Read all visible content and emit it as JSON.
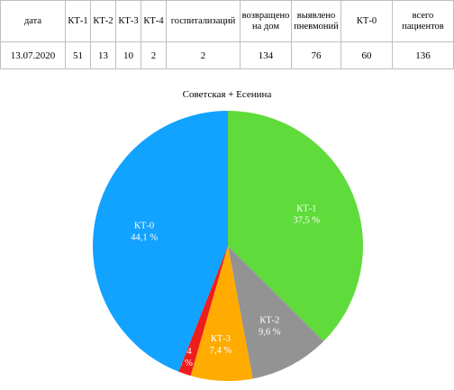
{
  "table": {
    "headers": [
      "дата",
      "КТ-1",
      "КТ-2",
      "КТ-3",
      "КТ-4",
      "госпитализаций",
      "возвращено на дом",
      "выявлено пневмоний",
      "КТ-0",
      "всего пациентов"
    ],
    "rows": [
      [
        "13.07.2020",
        "51",
        "13",
        "10",
        "2",
        "2",
        "134",
        "76",
        "60",
        "136"
      ]
    ]
  },
  "chart_data": {
    "type": "pie",
    "title": "Советская + Есенина",
    "slices": [
      {
        "label": "КТ-1",
        "value": 37.5,
        "value_label": "37,5 %",
        "color": "#5fdb3b"
      },
      {
        "label": "КТ-2",
        "value": 9.6,
        "value_label": "9,6 %",
        "color": "#939393"
      },
      {
        "label": "КТ-3",
        "value": 7.4,
        "value_label": "7,4 %",
        "color": "#ffab00"
      },
      {
        "label": "КТ-4",
        "value": 1.5,
        "value_label": "1,5 %",
        "color": "#ef1c1c"
      },
      {
        "label": "КТ-0",
        "value": 44.1,
        "value_label": "44,1 %",
        "color": "#12a2ff"
      }
    ],
    "start": "12 o'clock",
    "direction": "clockwise",
    "labels_inside": true
  }
}
